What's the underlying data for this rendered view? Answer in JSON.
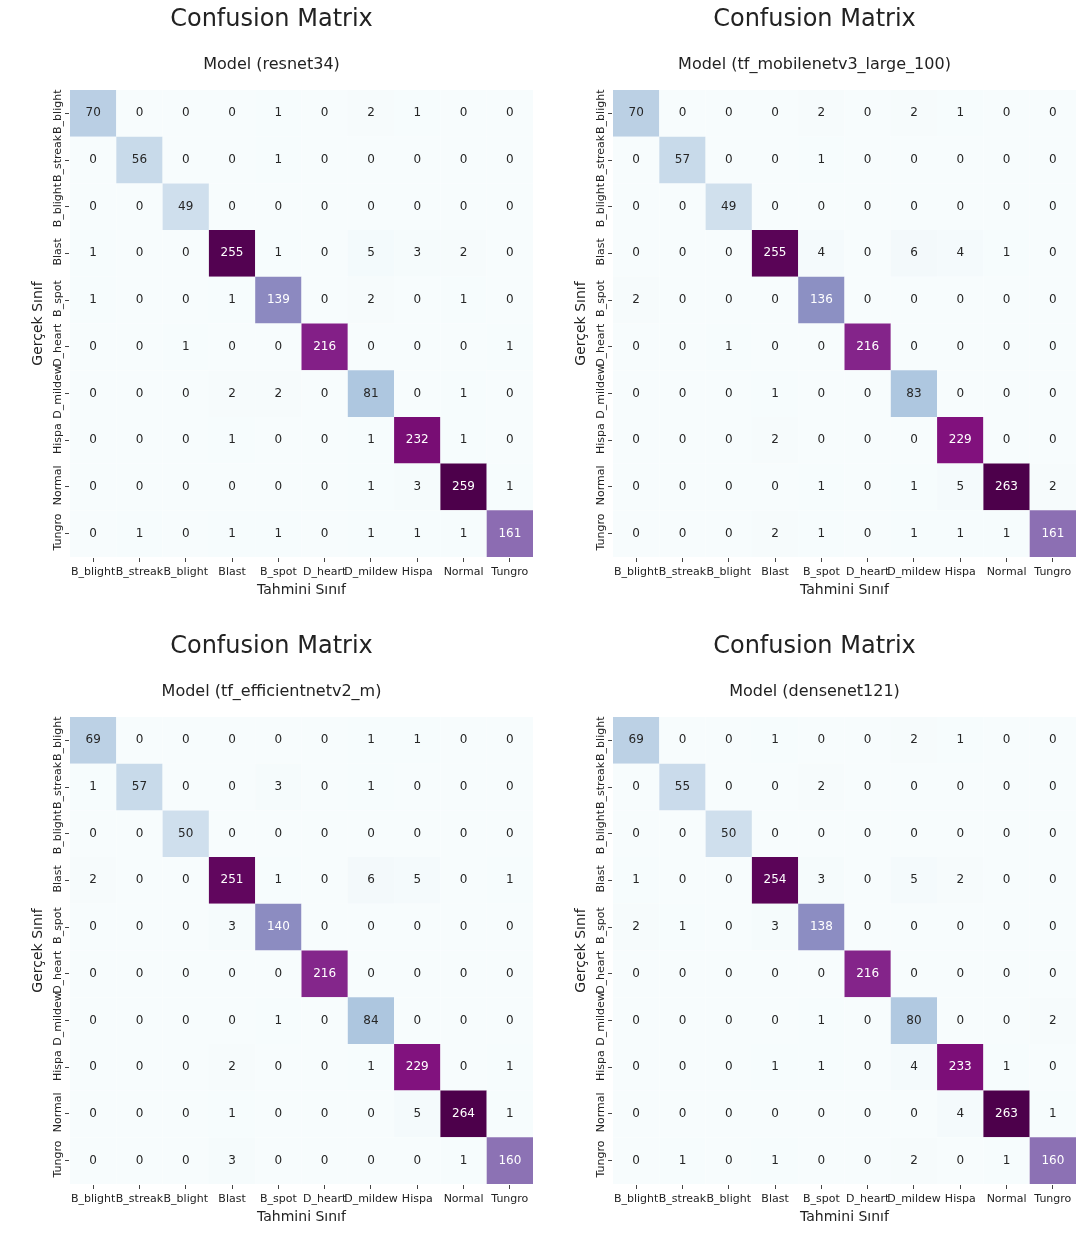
{
  "chart_data": [
    {
      "type": "heatmap",
      "title": "Confusion Matrix",
      "subtitle": "Model (resnet34)",
      "xlabel": "Tahmini Sınıf",
      "ylabel": "Gerçek Sınıf",
      "data_labels": true,
      "categories": [
        "B_blight",
        "B_streak",
        "B_blight",
        "Blast",
        "B_spot",
        "D_heart",
        "D_mildew",
        "Hispa",
        "Normal",
        "Tungro"
      ],
      "y_categories": [
        "B_blight",
        "B_streak",
        "B_blight",
        "Blast",
        "B_spot",
        "D_heart",
        "D_mildew",
        "Hispa",
        "Normal",
        "Tungro"
      ],
      "cells": [
        [
          70,
          0,
          0,
          0,
          1,
          0,
          2,
          1,
          0,
          0
        ],
        [
          0,
          56,
          0,
          0,
          1,
          0,
          0,
          0,
          0,
          0
        ],
        [
          0,
          0,
          49,
          0,
          0,
          0,
          0,
          0,
          0,
          0
        ],
        [
          1,
          0,
          0,
          255,
          1,
          0,
          5,
          3,
          2,
          0
        ],
        [
          1,
          0,
          0,
          1,
          139,
          0,
          2,
          0,
          1,
          0
        ],
        [
          0,
          0,
          1,
          0,
          0,
          216,
          0,
          0,
          0,
          1
        ],
        [
          0,
          0,
          0,
          2,
          2,
          0,
          81,
          0,
          1,
          0
        ],
        [
          0,
          0,
          0,
          1,
          0,
          0,
          1,
          232,
          1,
          0
        ],
        [
          0,
          0,
          0,
          0,
          0,
          0,
          1,
          3,
          259,
          1
        ],
        [
          0,
          1,
          0,
          1,
          1,
          0,
          1,
          1,
          1,
          161
        ]
      ]
    },
    {
      "type": "heatmap",
      "title": "Confusion Matrix",
      "subtitle": "Model (tf_mobilenetv3_large_100)",
      "xlabel": "Tahmini Sınıf",
      "ylabel": "Gerçek Sınıf",
      "data_labels": true,
      "categories": [
        "B_blight",
        "B_streak",
        "B_blight",
        "Blast",
        "B_spot",
        "D_heart",
        "D_mildew",
        "Hispa",
        "Normal",
        "Tungro"
      ],
      "y_categories": [
        "B_blight",
        "B_streak",
        "B_blight",
        "Blast",
        "B_spot",
        "D_heart",
        "D_mildew",
        "Hispa",
        "Normal",
        "Tungro"
      ],
      "cells": [
        [
          70,
          0,
          0,
          0,
          2,
          0,
          2,
          1,
          0,
          0
        ],
        [
          0,
          57,
          0,
          0,
          1,
          0,
          0,
          0,
          0,
          0
        ],
        [
          0,
          0,
          49,
          0,
          0,
          0,
          0,
          0,
          0,
          0
        ],
        [
          0,
          0,
          0,
          255,
          4,
          0,
          6,
          4,
          1,
          0
        ],
        [
          2,
          0,
          0,
          0,
          136,
          0,
          0,
          0,
          0,
          0
        ],
        [
          0,
          0,
          1,
          0,
          0,
          216,
          0,
          0,
          0,
          0
        ],
        [
          0,
          0,
          0,
          1,
          0,
          0,
          83,
          0,
          0,
          0
        ],
        [
          0,
          0,
          0,
          2,
          0,
          0,
          0,
          229,
          0,
          0
        ],
        [
          0,
          0,
          0,
          0,
          1,
          0,
          1,
          5,
          263,
          2
        ],
        [
          0,
          0,
          0,
          2,
          1,
          0,
          1,
          1,
          1,
          161
        ]
      ]
    },
    {
      "type": "heatmap",
      "title": "Confusion Matrix",
      "subtitle": "Model (tf_efficientnetv2_m)",
      "xlabel": "Tahmini Sınıf",
      "ylabel": "Gerçek Sınıf",
      "data_labels": true,
      "categories": [
        "B_blight",
        "B_streak",
        "B_blight",
        "Blast",
        "B_spot",
        "D_heart",
        "D_mildew",
        "Hispa",
        "Normal",
        "Tungro"
      ],
      "y_categories": [
        "B_blight",
        "B_streak",
        "B_blight",
        "Blast",
        "B_spot",
        "D_heart",
        "D_mildew",
        "Hispa",
        "Normal",
        "Tungro"
      ],
      "cells": [
        [
          69,
          0,
          0,
          0,
          0,
          0,
          1,
          1,
          0,
          0
        ],
        [
          1,
          57,
          0,
          0,
          3,
          0,
          1,
          0,
          0,
          0
        ],
        [
          0,
          0,
          50,
          0,
          0,
          0,
          0,
          0,
          0,
          0
        ],
        [
          2,
          0,
          0,
          251,
          1,
          0,
          6,
          5,
          0,
          1
        ],
        [
          0,
          0,
          0,
          3,
          140,
          0,
          0,
          0,
          0,
          0
        ],
        [
          0,
          0,
          0,
          0,
          0,
          216,
          0,
          0,
          0,
          0
        ],
        [
          0,
          0,
          0,
          0,
          1,
          0,
          84,
          0,
          0,
          0
        ],
        [
          0,
          0,
          0,
          2,
          0,
          0,
          1,
          229,
          0,
          1
        ],
        [
          0,
          0,
          0,
          1,
          0,
          0,
          0,
          5,
          264,
          1
        ],
        [
          0,
          0,
          0,
          3,
          0,
          0,
          0,
          0,
          1,
          160
        ]
      ]
    },
    {
      "type": "heatmap",
      "title": "Confusion Matrix",
      "subtitle": "Model (densenet121)",
      "xlabel": "Tahmini Sınıf",
      "ylabel": "Gerçek Sınıf",
      "data_labels": true,
      "categories": [
        "B_blight",
        "B_streak",
        "B_blight",
        "Blast",
        "B_spot",
        "D_heart",
        "D_mildew",
        "Hispa",
        "Normal",
        "Tungro"
      ],
      "y_categories": [
        "B_blight",
        "B_streak",
        "B_blight",
        "Blast",
        "B_spot",
        "D_heart",
        "D_mildew",
        "Hispa",
        "Normal",
        "Tungro"
      ],
      "cells": [
        [
          69,
          0,
          0,
          1,
          0,
          0,
          2,
          1,
          0,
          0
        ],
        [
          0,
          55,
          0,
          0,
          2,
          0,
          0,
          0,
          0,
          0
        ],
        [
          0,
          0,
          50,
          0,
          0,
          0,
          0,
          0,
          0,
          0
        ],
        [
          1,
          0,
          0,
          254,
          3,
          0,
          5,
          2,
          0,
          0
        ],
        [
          2,
          1,
          0,
          3,
          138,
          0,
          0,
          0,
          0,
          0
        ],
        [
          0,
          0,
          0,
          0,
          0,
          216,
          0,
          0,
          0,
          0
        ],
        [
          0,
          0,
          0,
          0,
          1,
          0,
          80,
          0,
          0,
          2
        ],
        [
          0,
          0,
          0,
          1,
          1,
          0,
          4,
          233,
          1,
          0
        ],
        [
          0,
          0,
          0,
          0,
          0,
          0,
          0,
          4,
          263,
          1
        ],
        [
          0,
          1,
          0,
          1,
          0,
          0,
          2,
          0,
          1,
          160
        ]
      ]
    }
  ]
}
